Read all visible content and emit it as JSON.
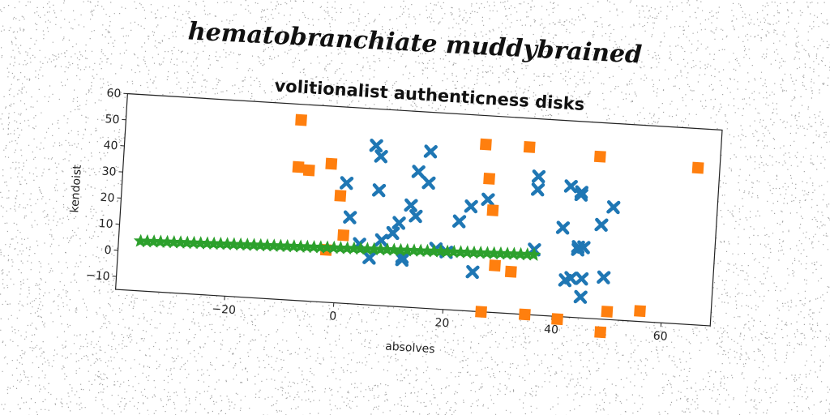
{
  "suptitle": "hematobranchiate muddybrained",
  "chart_data": {
    "type": "scatter",
    "title": "volitionalist authenticness disks",
    "xlabel": "absolves",
    "ylabel": "kendoist",
    "xlim": [
      -40,
      69
    ],
    "ylim": [
      -15,
      60
    ],
    "xticks": [
      -20,
      0,
      20,
      40,
      60
    ],
    "yticks": [
      -10,
      0,
      10,
      20,
      30,
      40,
      50,
      60
    ],
    "grid": false,
    "series": [
      {
        "marker": "x",
        "color": "#1f77b4",
        "x": [
          6,
          7,
          16,
          14,
          2,
          16,
          7,
          13,
          1,
          6,
          14,
          4,
          11,
          8,
          10,
          10,
          12,
          12,
          22,
          24,
          27,
          36,
          36,
          42,
          44,
          44,
          48,
          50,
          41,
          44,
          44,
          45,
          45,
          42,
          43,
          49,
          45,
          25,
          36,
          18,
          20
        ],
        "y": [
          46,
          42,
          45,
          37,
          18,
          33,
          29,
          24,
          31,
          3,
          20,
          8,
          17,
          10,
          13,
          13,
          4,
          3,
          19,
          25,
          28,
          38,
          33,
          35,
          33,
          32,
          21,
          28,
          19,
          12,
          11,
          12,
          0,
          -1,
          0,
          1,
          -7,
          0,
          10,
          8,
          7
        ]
      },
      {
        "marker": "s",
        "color": "#ff7f0e",
        "x": [
          -8,
          -8,
          -6,
          -2,
          0,
          1,
          -2,
          26,
          34,
          47,
          65,
          27,
          28,
          29,
          32,
          27,
          35,
          41,
          50,
          56,
          49
        ],
        "y": [
          54,
          36,
          35,
          38,
          26,
          11,
          5,
          49,
          49,
          47,
          45,
          36,
          24,
          3,
          1,
          -15,
          -15,
          -16,
          -12,
          -11,
          -20
        ]
      },
      {
        "marker": "*",
        "color": "#2ca02c",
        "x_range": [
          -36,
          36
        ],
        "y_range": [
          4,
          8
        ],
        "count": 60
      }
    ]
  }
}
